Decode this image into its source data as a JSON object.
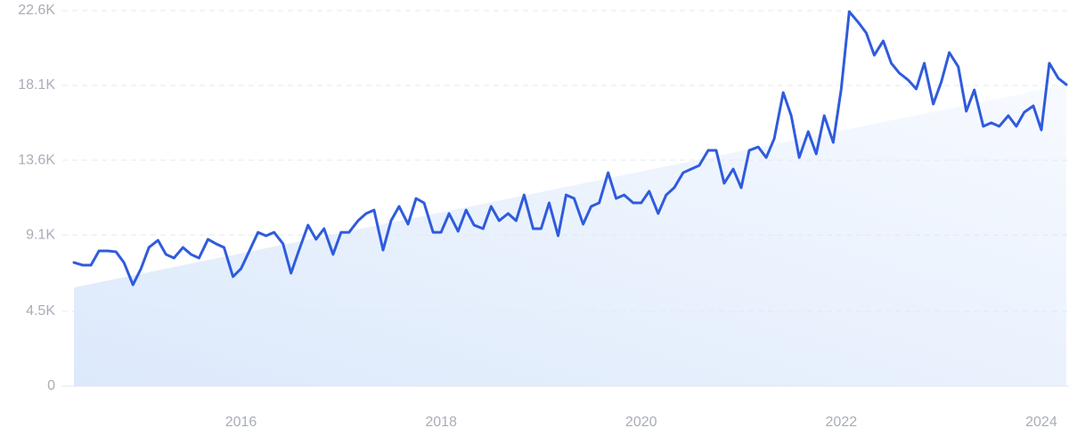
{
  "chart_data": {
    "type": "line",
    "color": "#2f5bdd",
    "ylim": [
      0,
      22600
    ],
    "yticks": [
      0,
      {
        "value": 4500,
        "label": "4.5K"
      },
      {
        "value": 9100,
        "label": "9.1K"
      },
      {
        "value": 13600,
        "label": "13.6K"
      },
      {
        "value": 18100,
        "label": "18.1K"
      },
      {
        "value": 22600,
        "label": "22.6K"
      }
    ],
    "xlim": [
      2014.33,
      2024.25
    ],
    "xticks": [
      2016,
      2018,
      2020,
      2022,
      2024
    ],
    "grid": true,
    "x": [
      2014.33,
      2014.42,
      2014.5,
      2014.58,
      2014.67,
      2014.75,
      2014.83,
      2014.92,
      2015.0,
      2015.08,
      2015.17,
      2015.25,
      2015.33,
      2015.42,
      2015.5,
      2015.58,
      2015.67,
      2015.75,
      2015.83,
      2015.92,
      2016.0,
      2016.08,
      2016.17,
      2016.25,
      2016.33,
      2016.42,
      2016.5,
      2016.58,
      2016.67,
      2016.75,
      2016.83,
      2016.92,
      2017.0,
      2017.08,
      2017.17,
      2017.25,
      2017.33,
      2017.42,
      2017.5,
      2017.58,
      2017.67,
      2017.75,
      2017.83,
      2017.92,
      2018.0,
      2018.08,
      2018.17,
      2018.25,
      2018.33,
      2018.42,
      2018.5,
      2018.58,
      2018.67,
      2018.75,
      2018.83,
      2018.92,
      2019.0,
      2019.08,
      2019.17,
      2019.25,
      2019.33,
      2019.42,
      2019.5,
      2019.58,
      2019.67,
      2019.75,
      2019.83,
      2019.92,
      2020.0,
      2020.08,
      2020.17,
      2020.25,
      2020.33,
      2020.42,
      2020.5,
      2020.58,
      2020.67,
      2020.75,
      2020.83,
      2020.92,
      2021.0,
      2021.08,
      2021.17,
      2021.25,
      2021.33,
      2021.42,
      2021.5,
      2021.58,
      2021.67,
      2021.75,
      2021.83,
      2021.92,
      2022.0,
      2022.08,
      2022.17,
      2022.25,
      2022.33,
      2022.42,
      2022.5,
      2022.58,
      2022.67,
      2022.75,
      2022.83,
      2022.92,
      2023.0,
      2023.08,
      2023.17,
      2023.25,
      2023.33,
      2023.42,
      2023.5,
      2023.58,
      2023.67,
      2023.75,
      2023.83,
      2023.92,
      2024.0,
      2024.08,
      2024.17,
      2024.25
    ],
    "values": [
      7440,
      7280,
      7280,
      8140,
      8140,
      8090,
      7440,
      6100,
      7070,
      8350,
      8780,
      7930,
      7710,
      8350,
      7930,
      7710,
      8840,
      8570,
      8350,
      6590,
      7070,
      8090,
      9260,
      9050,
      9260,
      8570,
      6800,
      8190,
      9690,
      8840,
      9480,
      7930,
      9260,
      9260,
      9960,
      10390,
      10600,
      8190,
      9960,
      10820,
      9750,
      11300,
      11030,
      9260,
      9260,
      10390,
      9320,
      10600,
      9690,
      9480,
      10820,
      9960,
      10390,
      9960,
      11510,
      9480,
      9480,
      11030,
      9050,
      11510,
      11300,
      9750,
      10820,
      11030,
      12850,
      11300,
      11510,
      11030,
      11030,
      11730,
      10390,
      11510,
      11940,
      12850,
      13070,
      13280,
      14190,
      14190,
      12210,
      13070,
      11940,
      14190,
      14400,
      13760,
      14890,
      17670,
      16280,
      13760,
      15320,
      13980,
      16280,
      14670,
      17890,
      22540,
      21900,
      21260,
      19920,
      20780,
      19440,
      18850,
      18420,
      17890,
      19440,
      16980,
      18310,
      20080,
      19220,
      16550,
      17830,
      15640,
      15850,
      15640,
      16280,
      15640,
      16490,
      16870,
      15420,
      19440,
      18530,
      18150
    ],
    "trend": {
      "x": [
        2014.33,
        2024.25
      ],
      "values": [
        5940,
        18150
      ]
    }
  }
}
